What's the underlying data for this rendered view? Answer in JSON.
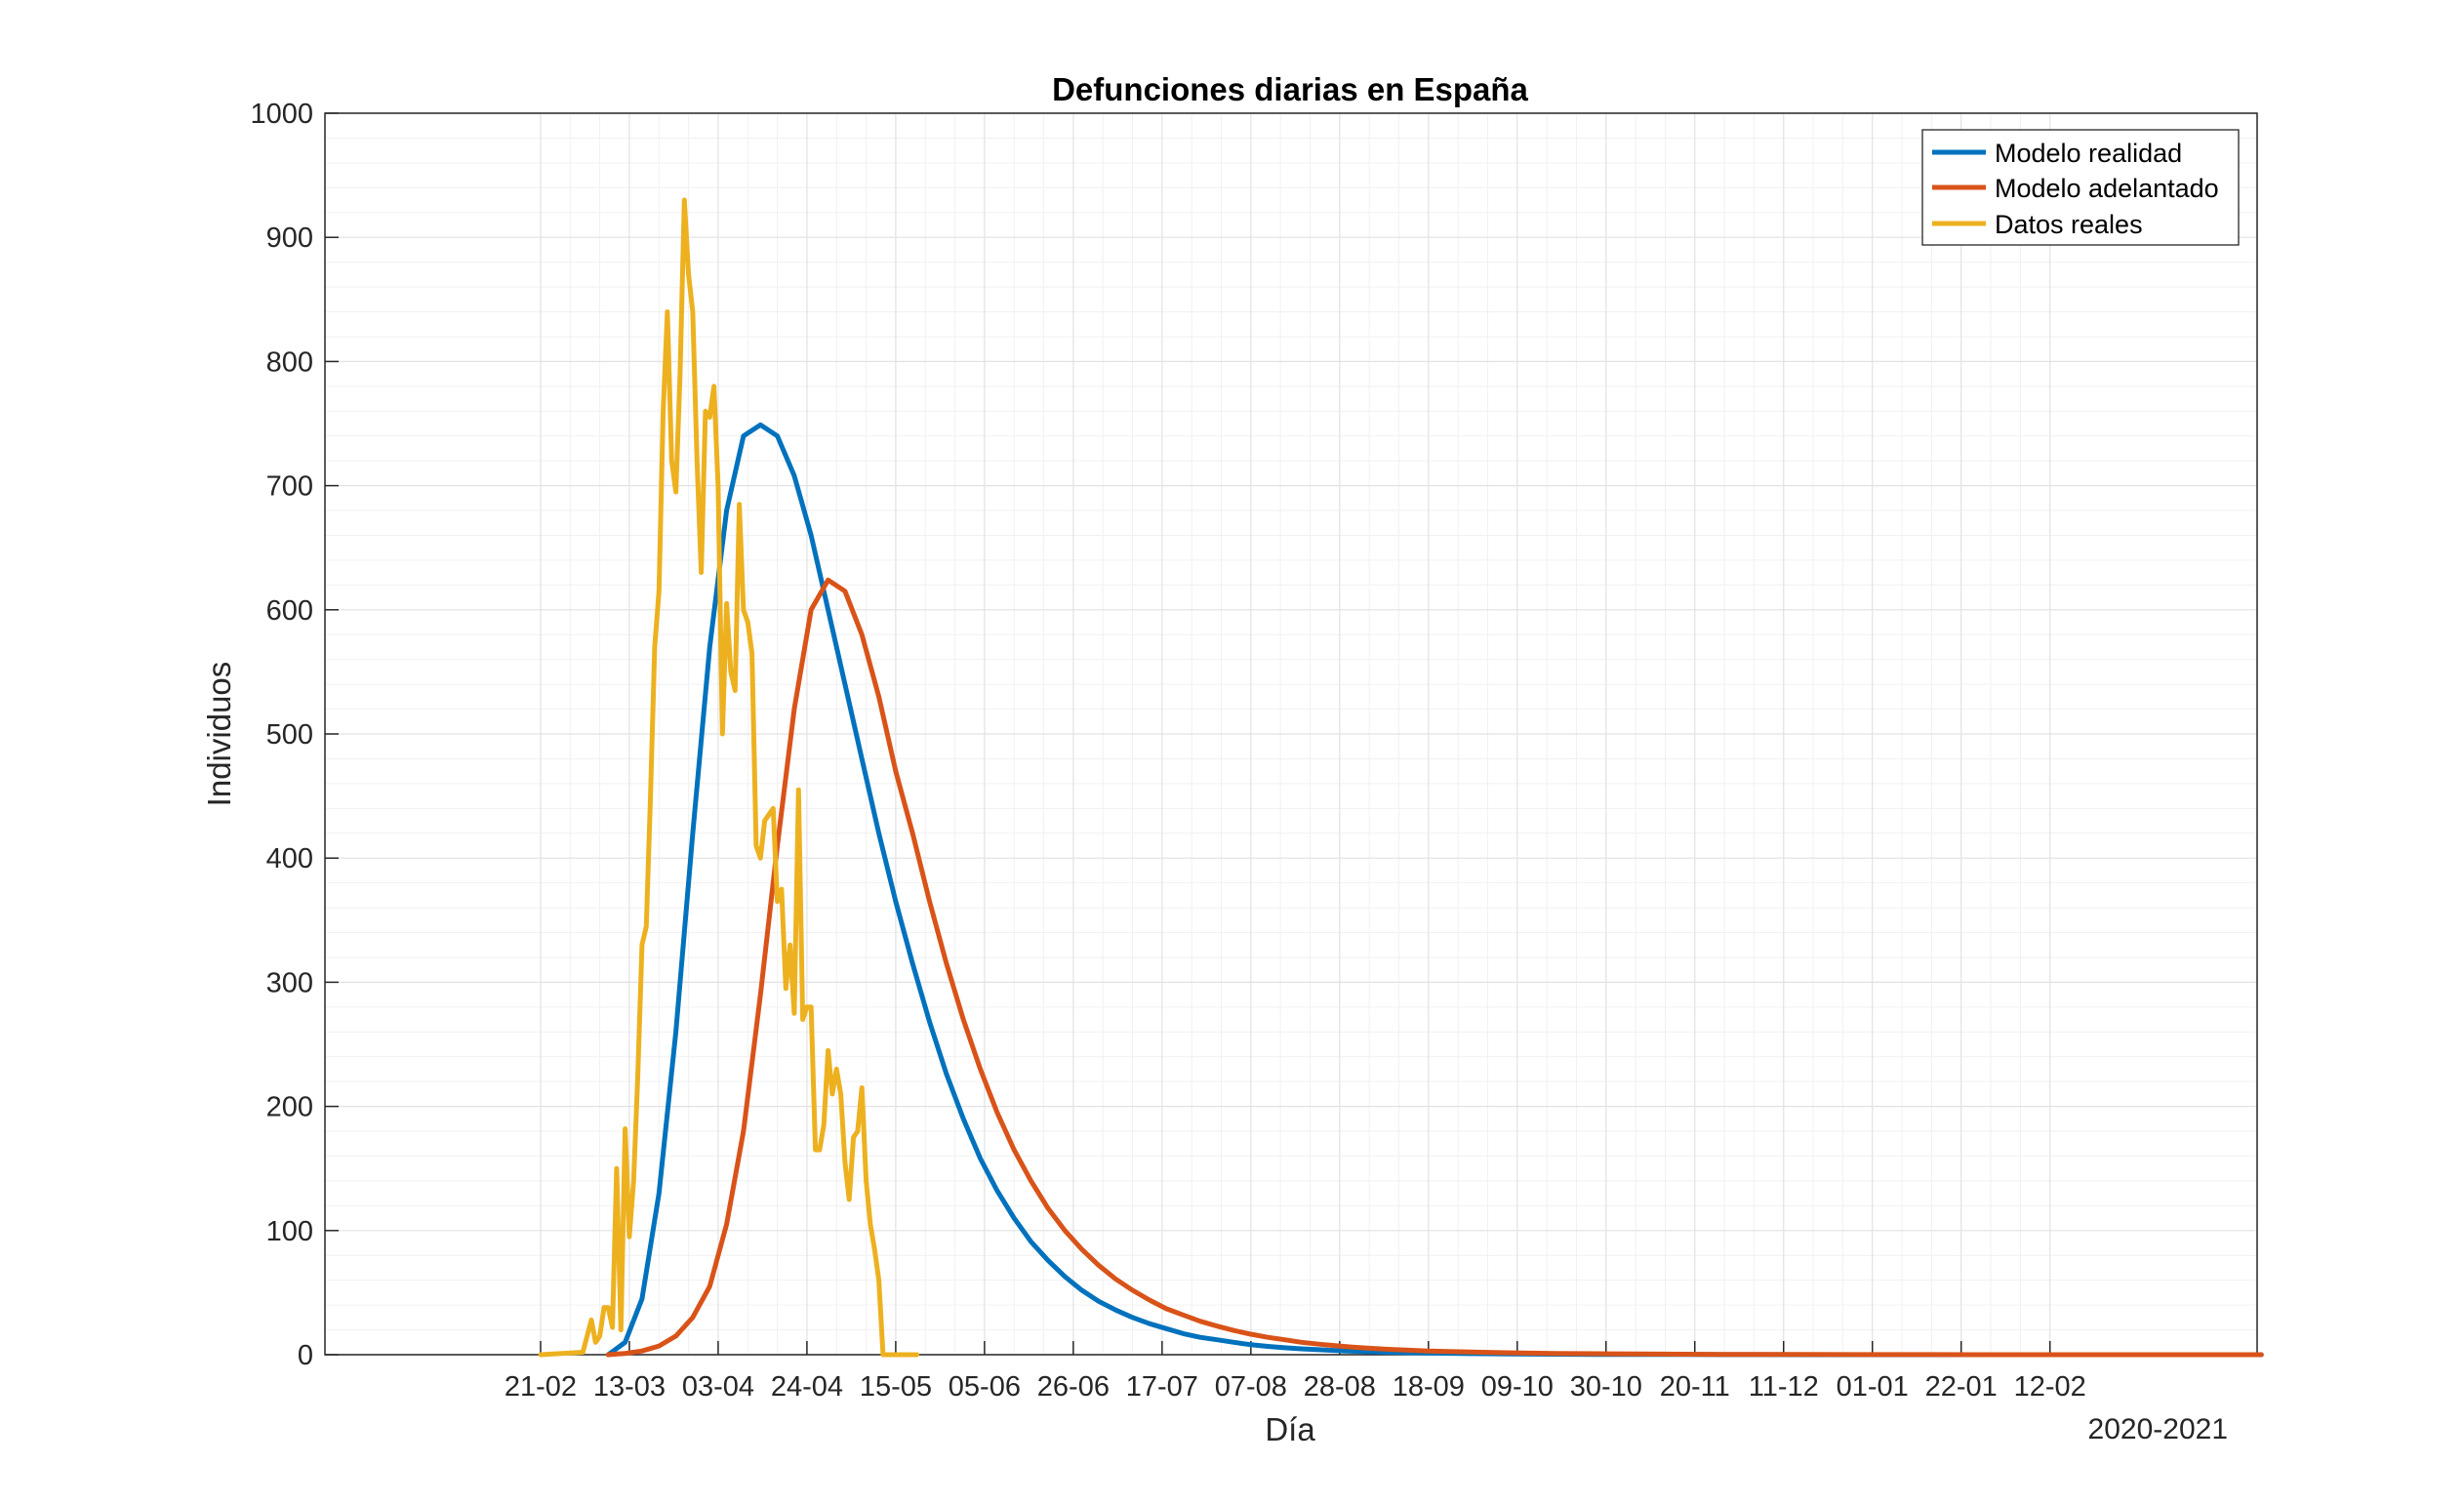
{
  "chart_data": {
    "type": "line",
    "title": "Defunciones diarias en España",
    "xlabel": "Día",
    "ylabel": "Individuos",
    "x_period_label": "2020-2021",
    "x_tick_labels": [
      "21-02",
      "13-03",
      "03-04",
      "24-04",
      "15-05",
      "05-06",
      "26-06",
      "17-07",
      "07-08",
      "28-08",
      "18-09",
      "09-10",
      "30-10",
      "20-11",
      "11-12",
      "01-01",
      "22-01",
      "12-02"
    ],
    "x_tick_days": [
      0,
      21,
      42,
      63,
      84,
      105,
      126,
      147,
      168,
      189,
      210,
      231,
      252,
      273,
      294,
      315,
      336,
      357
    ],
    "xlim_days": [
      -51,
      406
    ],
    "ylim": [
      0,
      1000
    ],
    "y_ticks": [
      0,
      100,
      200,
      300,
      400,
      500,
      600,
      700,
      800,
      900,
      1000
    ],
    "grid": true,
    "minor_grid": true,
    "legend_position": "top-right",
    "series": [
      {
        "name": "Modelo realidad",
        "color": "#0072BD",
        "x_days": [
          16,
          20,
          24,
          28,
          32,
          36,
          40,
          44,
          48,
          52,
          56,
          60,
          64,
          68,
          72,
          76,
          80,
          84,
          88,
          92,
          96,
          100,
          104,
          108,
          112,
          116,
          120,
          124,
          128,
          132,
          136,
          140,
          144,
          148,
          152,
          156,
          160,
          164,
          168,
          172,
          176,
          180,
          190,
          200,
          210,
          220,
          230,
          240,
          250,
          260,
          270,
          280,
          290,
          300,
          310,
          320,
          330,
          340,
          350,
          360,
          370,
          380,
          390,
          400,
          407
        ],
        "values": [
          0,
          10,
          45,
          130,
          260,
          420,
          570,
          680,
          740,
          749,
          740,
          708,
          660,
          600,
          540,
          480,
          420,
          365,
          315,
          268,
          226,
          190,
          158,
          132,
          110,
          91,
          76,
          63,
          52,
          43,
          36,
          30,
          25,
          21,
          17,
          14,
          12,
          10,
          8,
          6.7,
          5.6,
          4.7,
          3.1,
          2,
          1.35,
          0.9,
          0.6,
          0.4,
          0.27,
          0.18,
          0.12,
          0.08,
          0.05,
          0.03,
          0.02,
          0.015,
          0.01,
          0.007,
          0.005,
          0.003,
          0.002,
          0.0015,
          0.001,
          0.0007,
          0.0005
        ]
      },
      {
        "name": "Modelo adelantado",
        "color": "#D95319",
        "x_days": [
          16,
          20,
          24,
          28,
          32,
          36,
          40,
          44,
          48,
          52,
          56,
          60,
          64,
          68,
          72,
          76,
          80,
          84,
          88,
          92,
          96,
          100,
          104,
          108,
          112,
          116,
          120,
          124,
          128,
          132,
          136,
          140,
          144,
          148,
          152,
          156,
          160,
          164,
          168,
          172,
          176,
          180,
          184,
          188,
          192,
          196,
          200,
          210,
          220,
          230,
          240,
          250,
          260,
          270,
          280,
          290,
          300,
          310,
          320,
          330,
          340,
          350,
          360,
          370,
          380,
          390,
          400,
          407
        ],
        "values": [
          0,
          1,
          3,
          7,
          15,
          30,
          55,
          105,
          180,
          290,
          410,
          520,
          600,
          624,
          615,
          580,
          530,
          470,
          420,
          365,
          315,
          270,
          230,
          195,
          165,
          140,
          118,
          100,
          85,
          72,
          61,
          52,
          44,
          37,
          32,
          27,
          23,
          19.5,
          16.5,
          14,
          12,
          10,
          8.5,
          7.2,
          6.1,
          5.2,
          4.4,
          3,
          2.1,
          1.5,
          1.05,
          0.75,
          0.53,
          0.37,
          0.26,
          0.18,
          0.13,
          0.09,
          0.06,
          0.045,
          0.03,
          0.022,
          0.015,
          0.01,
          0.007,
          0.005,
          0.0035,
          0.0025
        ]
      },
      {
        "name": "Datos reales",
        "color": "#EDB120",
        "x_days": [
          0,
          10,
          12,
          13,
          14,
          15,
          16,
          17,
          18,
          19,
          20,
          21,
          22,
          23,
          24,
          25,
          26,
          27,
          28,
          29,
          30,
          31,
          32,
          33,
          34,
          35,
          36,
          37,
          38,
          39,
          40,
          41,
          42,
          43,
          44,
          45,
          46,
          47,
          48,
          49,
          50,
          51,
          52,
          53,
          54,
          55,
          56,
          57,
          58,
          59,
          60,
          61,
          62,
          63,
          64,
          65,
          66,
          67,
          68,
          69,
          70,
          71,
          72,
          73,
          74,
          75,
          76,
          77,
          78,
          79,
          80,
          81,
          82,
          83,
          84,
          85,
          86,
          87,
          88,
          89
        ],
        "values": [
          0,
          2,
          28,
          10,
          15,
          38,
          38,
          22,
          150,
          20,
          182,
          95,
          140,
          225,
          330,
          345,
          450,
          570,
          615,
          760,
          840,
          720,
          695,
          790,
          930,
          870,
          840,
          720,
          630,
          760,
          755,
          780,
          700,
          500,
          605,
          550,
          535,
          685,
          600,
          590,
          565,
          410,
          400,
          430,
          435,
          440,
          365,
          375,
          295,
          330,
          275,
          455,
          270,
          280,
          280,
          165,
          165,
          185,
          245,
          210,
          230,
          210,
          155,
          125,
          175,
          180,
          215,
          140,
          105,
          85,
          60,
          0,
          0,
          0,
          0,
          0,
          0,
          0,
          0,
          0
        ]
      }
    ]
  }
}
